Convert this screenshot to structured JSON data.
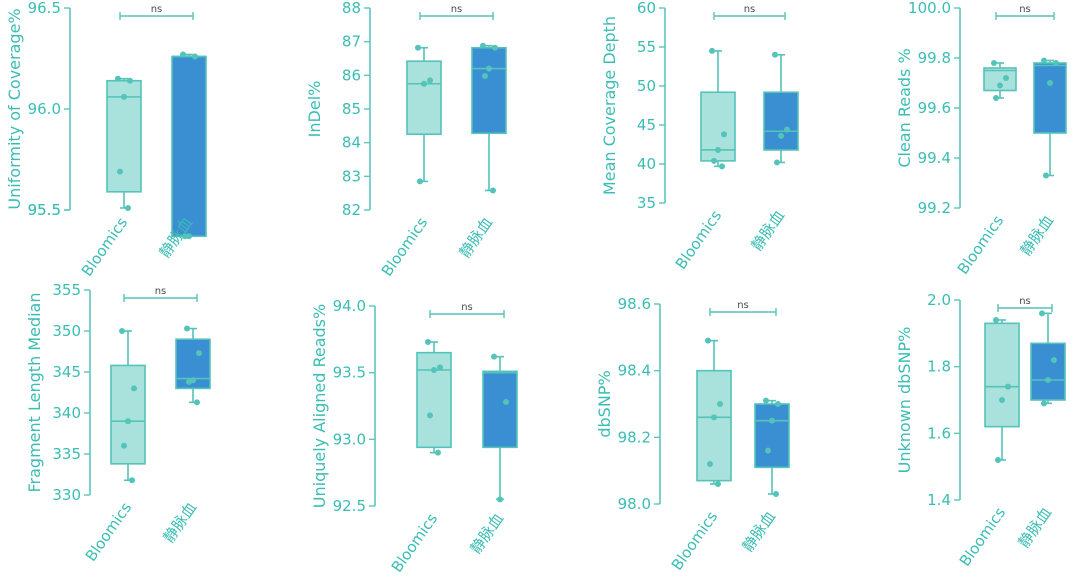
{
  "colors": {
    "text": "#3bbdb3",
    "axis": "#5cc6bd",
    "box_bloomics": "#a9e2dc",
    "box_vein": "#3a8fd3",
    "point": "#54c3b9"
  },
  "categories": [
    "Bloomics",
    "静脉血"
  ],
  "chart_data": [
    {
      "type": "box",
      "title": "",
      "ylabel": "Uniformity of Coverage%",
      "ylim": [
        95.5,
        96.5
      ],
      "yticks": [
        "95.5",
        "95.5",
        "96.0",
        "96.5"
      ],
      "yticks_values": [
        95.5,
        95.5,
        96.0,
        96.5
      ],
      "significance": "ns",
      "categories": [
        "Bloomics",
        "静脉血"
      ],
      "series": [
        {
          "name": "Bloomics",
          "min": 95.51,
          "q1": 95.59,
          "median": 96.06,
          "q3": 96.14,
          "max": 96.15,
          "points": [
            96.15,
            96.14,
            96.06,
            95.69,
            95.51
          ]
        },
        {
          "name": "静脉血",
          "min": 95.37,
          "q1": 95.37,
          "median": 96.26,
          "q3": 96.26,
          "max": 96.27,
          "points": [
            96.27,
            96.26,
            95.37,
            95.37
          ]
        }
      ]
    },
    {
      "type": "box",
      "title": "",
      "ylabel": "InDel%",
      "ylim": [
        82,
        88
      ],
      "yticks": [
        "82",
        "83",
        "84",
        "85",
        "86",
        "87",
        "88"
      ],
      "yticks_values": [
        82,
        83,
        84,
        85,
        86,
        87,
        88
      ],
      "significance": "ns",
      "categories": [
        "Bloomics",
        "静脉血"
      ],
      "series": [
        {
          "name": "Bloomics",
          "min": 82.85,
          "q1": 84.25,
          "median": 85.75,
          "q3": 86.42,
          "max": 86.82,
          "points": [
            86.82,
            85.85,
            85.75,
            82.85
          ]
        },
        {
          "name": "静脉血",
          "min": 82.58,
          "q1": 84.28,
          "median": 86.2,
          "q3": 86.82,
          "max": 86.88,
          "points": [
            86.88,
            86.82,
            86.2,
            85.98,
            82.58
          ]
        }
      ]
    },
    {
      "type": "box",
      "title": "",
      "ylabel": "Mean Coverage Depth",
      "ylim": [
        35,
        60
      ],
      "yticks": [
        "35",
        "40",
        "45",
        "50",
        "55",
        "60"
      ],
      "yticks_values": [
        35,
        40,
        45,
        50,
        55,
        60
      ],
      "significance": "ns",
      "categories": [
        "Bloomics",
        "静脉血"
      ],
      "series": [
        {
          "name": "Bloomics",
          "min": 39.7,
          "q1": 40.4,
          "median": 41.8,
          "q3": 49.2,
          "max": 54.5,
          "points": [
            54.5,
            43.8,
            41.8,
            40.4,
            39.7
          ]
        },
        {
          "name": "静脉血",
          "min": 40.2,
          "q1": 41.8,
          "median": 44.2,
          "q3": 49.2,
          "max": 54.0,
          "points": [
            54.0,
            44.4,
            43.6,
            40.2
          ]
        }
      ]
    },
    {
      "type": "box",
      "title": "",
      "ylabel": "Clean Reads %",
      "ylim": [
        99.2,
        100.0
      ],
      "yticks": [
        "99.2",
        "99.4",
        "99.6",
        "99.8",
        "100.0"
      ],
      "yticks_values": [
        99.2,
        99.4,
        99.6,
        99.8,
        100.0
      ],
      "significance": "ns",
      "categories": [
        "Bloomics",
        "静脉血"
      ],
      "series": [
        {
          "name": "Bloomics",
          "min": 99.64,
          "q1": 99.67,
          "median": 99.75,
          "q3": 99.76,
          "max": 99.78,
          "points": [
            99.78,
            99.72,
            99.69,
            99.64
          ]
        },
        {
          "name": "静脉血",
          "min": 99.33,
          "q1": 99.5,
          "median": 99.77,
          "q3": 99.78,
          "max": 99.79,
          "points": [
            99.79,
            99.78,
            99.7,
            99.33
          ]
        }
      ]
    },
    {
      "type": "box",
      "title": "",
      "ylabel": "Fragment Length Median",
      "ylim": [
        330,
        355
      ],
      "yticks": [
        "330",
        "335",
        "340",
        "345",
        "350",
        "355"
      ],
      "yticks_values": [
        330,
        335,
        340,
        345,
        350,
        355
      ],
      "significance": "ns",
      "categories": [
        "Bloomics",
        "静脉血"
      ],
      "series": [
        {
          "name": "Bloomics",
          "min": 331.8,
          "q1": 333.8,
          "median": 339.0,
          "q3": 345.8,
          "max": 350.0,
          "points": [
            350.0,
            343.0,
            339.0,
            336.0,
            331.8
          ]
        },
        {
          "name": "静脉血",
          "min": 341.3,
          "q1": 343.0,
          "median": 344.2,
          "q3": 349.0,
          "max": 350.3,
          "points": [
            350.3,
            347.3,
            344.0,
            343.8,
            341.3
          ]
        }
      ]
    },
    {
      "type": "box",
      "title": "",
      "ylabel": "Uniquely Aligned Reads%",
      "ylim": [
        92.5,
        94.0
      ],
      "yticks": [
        "92.5",
        "93.0",
        "93.5",
        "94.0"
      ],
      "yticks_values": [
        92.5,
        93.0,
        93.5,
        94.0
      ],
      "significance": "ns",
      "categories": [
        "Bloomics",
        "静脉血"
      ],
      "series": [
        {
          "name": "Bloomics",
          "min": 92.9,
          "q1": 92.94,
          "median": 93.52,
          "q3": 93.65,
          "max": 93.73,
          "points": [
            93.73,
            93.54,
            93.52,
            93.18,
            92.9
          ]
        },
        {
          "name": "静脉血",
          "min": 92.55,
          "q1": 92.94,
          "median": 93.5,
          "q3": 93.51,
          "max": 93.62,
          "points": [
            93.62,
            93.28,
            92.55
          ]
        }
      ]
    },
    {
      "type": "box",
      "title": "",
      "ylabel": "dbSNP%",
      "ylim": [
        98.0,
        98.6
      ],
      "yticks": [
        "98.0",
        "98.2",
        "98.4",
        "98.6"
      ],
      "yticks_values": [
        98.0,
        98.2,
        98.4,
        98.6
      ],
      "significance": "ns",
      "categories": [
        "Bloomics",
        "静脉血"
      ],
      "series": [
        {
          "name": "Bloomics",
          "min": 98.06,
          "q1": 98.07,
          "median": 98.26,
          "q3": 98.4,
          "max": 98.49,
          "points": [
            98.49,
            98.3,
            98.26,
            98.12,
            98.06
          ]
        },
        {
          "name": "静脉血",
          "min": 98.03,
          "q1": 98.11,
          "median": 98.25,
          "q3": 98.3,
          "max": 98.31,
          "points": [
            98.31,
            98.3,
            98.25,
            98.16,
            98.03
          ]
        }
      ]
    },
    {
      "type": "box",
      "title": "",
      "ylabel": "Unknown dbSNP%",
      "ylim": [
        1.4,
        2.0
      ],
      "yticks": [
        "1.4",
        "1.6",
        "1.8",
        "2.0"
      ],
      "yticks_values": [
        1.4,
        1.6,
        1.8,
        2.0
      ],
      "significance": "ns",
      "categories": [
        "Bloomics",
        "静脉血"
      ],
      "series": [
        {
          "name": "Bloomics",
          "min": 1.52,
          "q1": 1.62,
          "median": 1.74,
          "q3": 1.93,
          "max": 1.94,
          "points": [
            1.94,
            1.74,
            1.7,
            1.52
          ]
        },
        {
          "name": "静脉血",
          "min": 1.69,
          "q1": 1.7,
          "median": 1.76,
          "q3": 1.87,
          "max": 1.96,
          "points": [
            1.96,
            1.82,
            1.76,
            1.69
          ]
        }
      ]
    }
  ]
}
